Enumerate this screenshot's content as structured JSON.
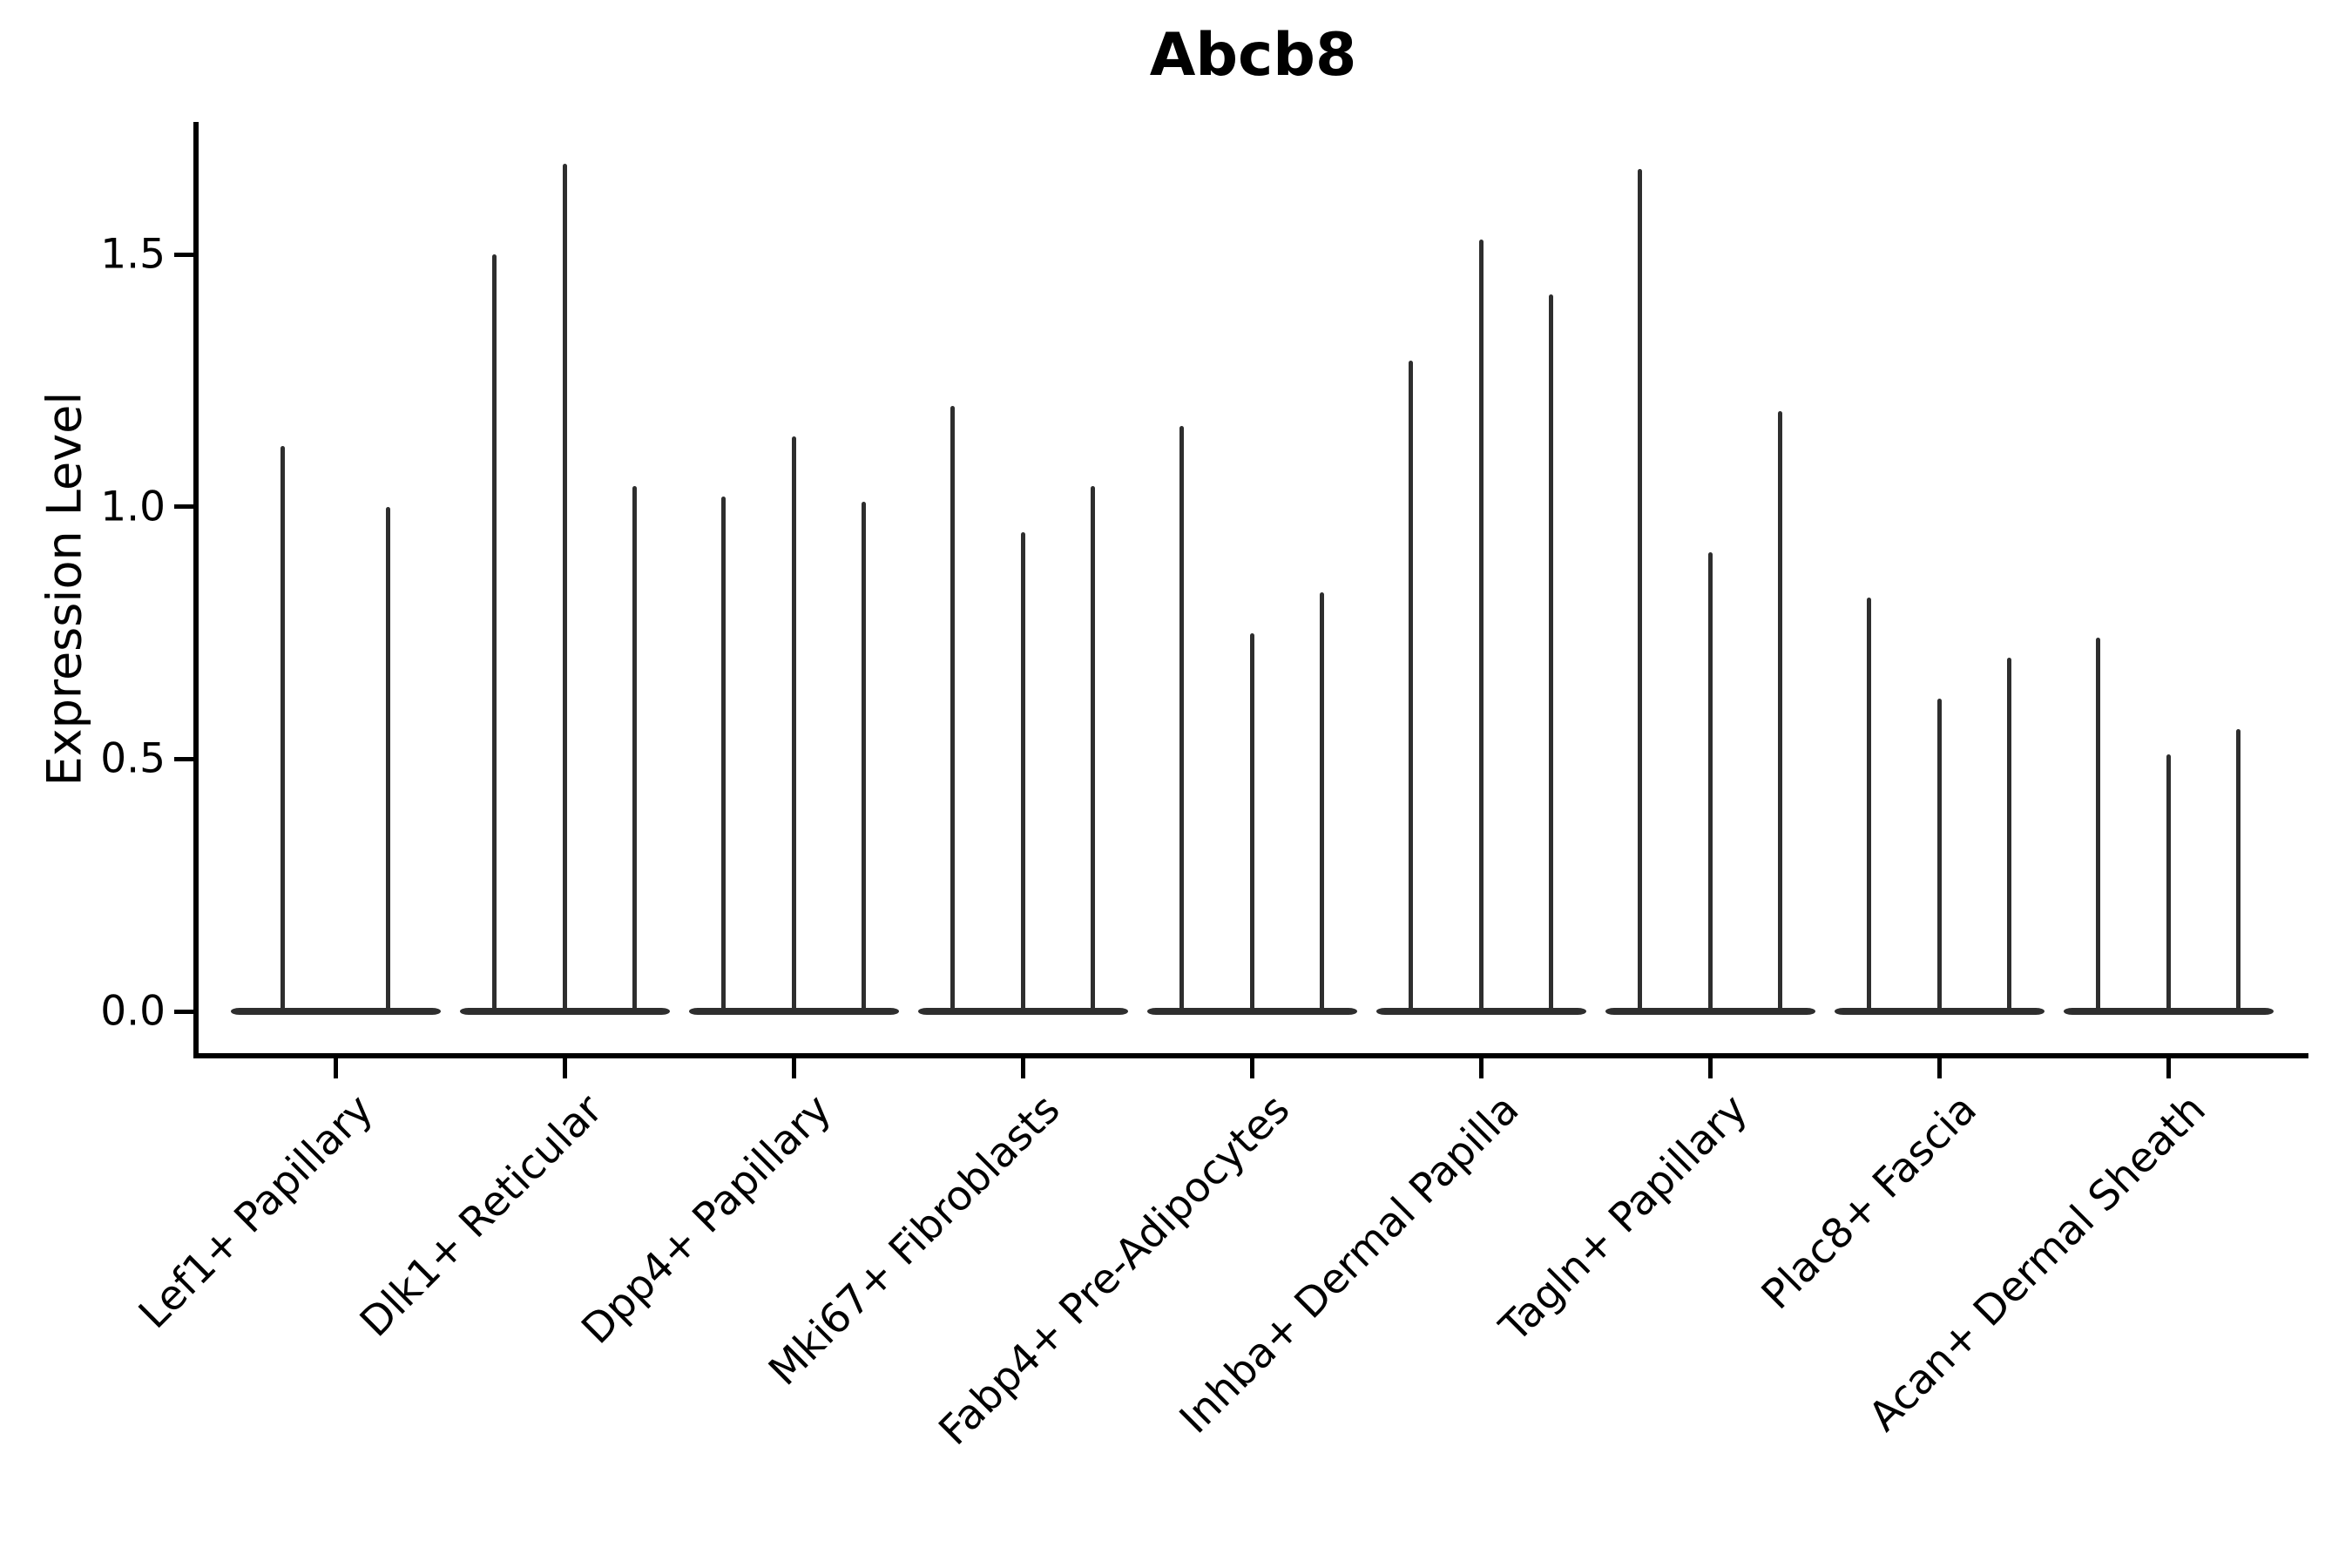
{
  "figure": {
    "title": "Abcb8",
    "y_axis": {
      "label": "Expression Level"
    },
    "x_axis": {
      "label": ""
    }
  },
  "chart_data": {
    "type": "violin",
    "title": "Abcb8",
    "xlabel": "",
    "ylabel": "Expression Level",
    "ylim": [
      -0.09,
      1.76
    ],
    "y_ticks": [
      0.0,
      0.5,
      1.0,
      1.5
    ],
    "grid": false,
    "legend_position": "none",
    "violin_color": "#2e2e2e",
    "axis_color": "#000000",
    "style_note": "needle-like violins: density concentrated at 0 with thin spike up to the maximum expression value",
    "categories": [
      "Lef1+ Papillary",
      "Dlk1+ Reticular",
      "Dpp4+ Papillary",
      "Mki67+ Fibroblasts",
      "Fabp4+ Pre-Adipocytes",
      "Inhba+ Dermal Papilla",
      "Tagln+ Papillary",
      "Plac8+ Fascia",
      "Acan+ Dermal Sheath"
    ],
    "groups": [
      {
        "category": "Lef1+ Papillary",
        "violin_maxima": [
          1.12,
          1.0
        ]
      },
      {
        "category": "Dlk1+ Reticular",
        "violin_maxima": [
          1.5,
          1.68,
          1.04
        ]
      },
      {
        "category": "Dpp4+ Papillary",
        "violin_maxima": [
          1.02,
          1.14,
          1.01
        ]
      },
      {
        "category": "Mki67+ Fibroblasts",
        "violin_maxima": [
          1.2,
          0.95,
          1.04
        ]
      },
      {
        "category": "Fabp4+ Pre-Adipocytes",
        "violin_maxima": [
          1.16,
          0.75,
          0.83
        ]
      },
      {
        "category": "Inhba+ Dermal Papilla",
        "violin_maxima": [
          1.29,
          1.53,
          1.42
        ]
      },
      {
        "category": "Tagln+ Papillary",
        "violin_maxima": [
          1.67,
          0.91,
          1.19
        ]
      },
      {
        "category": "Plac8+ Fascia",
        "violin_maxima": [
          0.82,
          0.62,
          0.7
        ]
      },
      {
        "category": "Acan+ Dermal Sheath",
        "violin_maxima": [
          0.74,
          0.51,
          0.56
        ]
      }
    ]
  }
}
